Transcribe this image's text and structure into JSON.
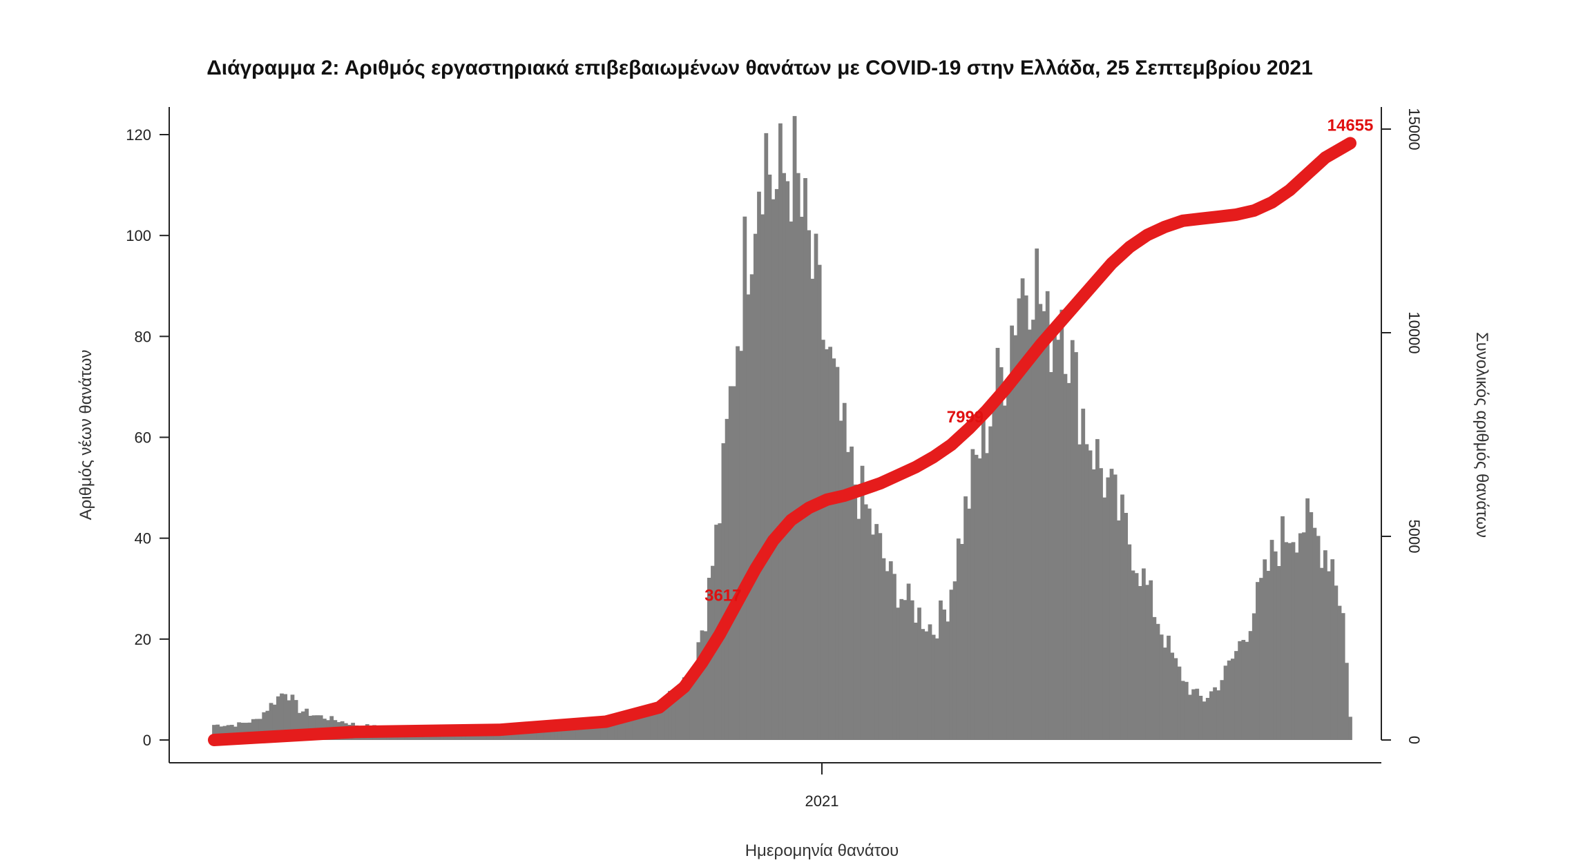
{
  "chart_data": {
    "type": "bar",
    "title": "Διάγραμμα 2: Αριθμός εργαστηριακά επιβεβαιωμένων θανάτων με COVID-19 στην Ελλάδα, 25 Σεπτεμβρίου 2021",
    "xlabel": "Ημερομηνία θανάτου",
    "ylabel": "Αριθμός νέων θανάτων",
    "ylabel_right": "Συνολικός αριθμός θανάτων",
    "x_tick_labels": [
      "2021"
    ],
    "y_ticks": [
      0,
      20,
      40,
      60,
      80,
      100,
      120
    ],
    "y_right_ticks": [
      0,
      5000,
      10000,
      15000
    ],
    "ylim": [
      0,
      120
    ],
    "ylim_right": [
      0,
      15000
    ],
    "grid": false,
    "series": [
      {
        "type": "bar",
        "axis": "left",
        "color": "#7f7f7f",
        "profile": [
          [
            0,
            3
          ],
          [
            6,
            3
          ],
          [
            12,
            4
          ],
          [
            16,
            7
          ],
          [
            20,
            10
          ],
          [
            24,
            6
          ],
          [
            28,
            5
          ],
          [
            34,
            4
          ],
          [
            40,
            3
          ],
          [
            55,
            2
          ],
          [
            70,
            2
          ],
          [
            90,
            2
          ],
          [
            100,
            3
          ],
          [
            110,
            3
          ],
          [
            118,
            5
          ],
          [
            124,
            7
          ],
          [
            130,
            10
          ],
          [
            134,
            14
          ],
          [
            138,
            25
          ],
          [
            142,
            45
          ],
          [
            146,
            75
          ],
          [
            150,
            100
          ],
          [
            154,
            120
          ],
          [
            158,
            108
          ],
          [
            162,
            115
          ],
          [
            166,
            100
          ],
          [
            170,
            85
          ],
          [
            174,
            70
          ],
          [
            178,
            55
          ],
          [
            182,
            48
          ],
          [
            186,
            40
          ],
          [
            190,
            32
          ],
          [
            194,
            28
          ],
          [
            198,
            25
          ],
          [
            202,
            22
          ],
          [
            206,
            27
          ],
          [
            210,
            42
          ],
          [
            214,
            55
          ],
          [
            218,
            65
          ],
          [
            222,
            75
          ],
          [
            226,
            90
          ],
          [
            230,
            95
          ],
          [
            234,
            80
          ],
          [
            238,
            88
          ],
          [
            242,
            70
          ],
          [
            246,
            60
          ],
          [
            250,
            52
          ],
          [
            254,
            45
          ],
          [
            258,
            38
          ],
          [
            262,
            30
          ],
          [
            266,
            22
          ],
          [
            270,
            15
          ],
          [
            274,
            10
          ],
          [
            278,
            8
          ],
          [
            282,
            11
          ],
          [
            286,
            16
          ],
          [
            290,
            22
          ],
          [
            294,
            30
          ],
          [
            298,
            38
          ],
          [
            302,
            42
          ],
          [
            306,
            43
          ],
          [
            310,
            40
          ],
          [
            314,
            36
          ],
          [
            317,
            25
          ],
          [
            319,
            5
          ]
        ]
      },
      {
        "type": "line",
        "axis": "right",
        "color": "#e51c1c",
        "x": [
          0,
          40,
          80,
          110,
          125,
          132,
          137,
          142,
          147,
          152,
          157,
          162,
          167,
          172,
          177,
          182,
          187,
          192,
          197,
          202,
          207,
          212,
          217,
          222,
          227,
          232,
          237,
          242,
          247,
          252,
          257,
          262,
          267,
          272,
          277,
          282,
          287,
          292,
          297,
          302,
          307,
          312,
          319
        ],
        "y": [
          0,
          200,
          250,
          450,
          800,
          1300,
          1900,
          2600,
          3400,
          4200,
          4900,
          5400,
          5700,
          5900,
          6000,
          6150,
          6300,
          6500,
          6700,
          6950,
          7250,
          7650,
          8100,
          8600,
          9150,
          9700,
          10200,
          10700,
          11200,
          11700,
          12100,
          12400,
          12600,
          12750,
          12800,
          12850,
          12900,
          13000,
          13200,
          13500,
          13900,
          14300,
          14655
        ]
      }
    ],
    "annotations": [
      {
        "text": "3617",
        "x": 150,
        "y": 3617
      },
      {
        "text": "7999",
        "x": 218,
        "y": 7999
      },
      {
        "text": "14655",
        "x": 319,
        "y": 14655
      }
    ]
  }
}
